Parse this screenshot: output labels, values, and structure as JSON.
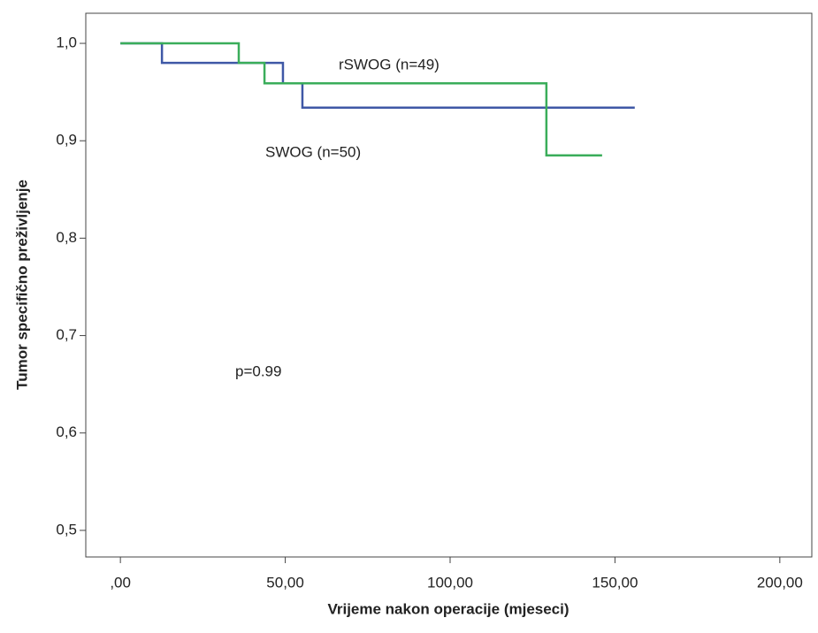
{
  "chart_data": {
    "type": "step",
    "y_label": "Tumor specifično preživljenje",
    "x_label": "Vrijeme nakon operacije (mjeseci)",
    "annotations": [
      "rSWOG (n=49)",
      "SWOG (n=50)",
      "p=0.99"
    ],
    "xlim": [
      -10.5,
      209.7
    ],
    "ylim": [
      0.4727,
      1.0309
    ],
    "xticks": [
      {
        "value": 0,
        "label": ",00"
      },
      {
        "value": 50,
        "label": "50,00"
      },
      {
        "value": 100,
        "label": "100,00"
      },
      {
        "value": 150,
        "label": "150,00"
      },
      {
        "value": 200,
        "label": "200,00"
      }
    ],
    "yticks": [
      {
        "value": 0.5,
        "label": "0,5"
      },
      {
        "value": 0.6,
        "label": "0,6"
      },
      {
        "value": 0.7,
        "label": "0,7"
      },
      {
        "value": 0.8,
        "label": "0,8"
      },
      {
        "value": 0.9,
        "label": "0,9"
      },
      {
        "value": 1.0,
        "label": "1,0"
      }
    ],
    "series": [
      {
        "color": "#3f58a6",
        "x": [
          0,
          12.6,
          12.6,
          49.3,
          49.3,
          55.2,
          55.2,
          156
        ],
        "values": [
          1.0,
          1.0,
          0.98,
          0.98,
          0.959,
          0.959,
          0.934,
          0.934
        ]
      },
      {
        "color": "#3aad5a",
        "x": [
          0,
          35.9,
          35.9,
          43.7,
          43.7,
          129.2,
          129.2,
          146.1
        ],
        "values": [
          1.0,
          1.0,
          0.98,
          0.98,
          0.959,
          0.959,
          0.885,
          0.885
        ]
      }
    ]
  }
}
